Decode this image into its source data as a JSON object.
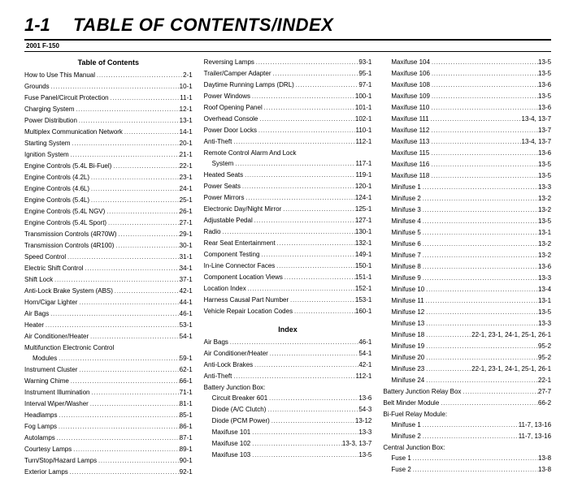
{
  "header": {
    "section_num": "1-1",
    "title": "TABLE OF CONTENTS/INDEX",
    "subhead": "2001 F-150"
  },
  "headings": {
    "toc": "Table of Contents",
    "index": "Index"
  },
  "col1": [
    {
      "label": "How to Use This Manual",
      "page": "2-1"
    },
    {
      "label": "Grounds",
      "page": "10-1"
    },
    {
      "label": "Fuse Panel/Circuit Protection",
      "page": "11-1"
    },
    {
      "label": "Charging System",
      "page": "12-1"
    },
    {
      "label": "Power Distribution",
      "page": "13-1"
    },
    {
      "label": "Multiplex Communication Network",
      "page": "14-1"
    },
    {
      "label": "Starting System",
      "page": "20-1"
    },
    {
      "label": "Ignition System",
      "page": "21-1"
    },
    {
      "label": "Engine Controls (5.4L Bi-Fuel)",
      "page": "22-1"
    },
    {
      "label": "Engine Controls (4.2L)",
      "page": "23-1"
    },
    {
      "label": "Engine Controls (4.6L)",
      "page": "24-1"
    },
    {
      "label": "Engine Controls (5.4L)",
      "page": "25-1"
    },
    {
      "label": "Engine Controls (5.4L NGV)",
      "page": "26-1"
    },
    {
      "label": "Engine Controls (5.4L Sport)",
      "page": "27-1"
    },
    {
      "label": "Transmission Controls (4R70W)",
      "page": "29-1"
    },
    {
      "label": "Transmission Controls (4R100)",
      "page": "30-1"
    },
    {
      "label": "Speed Control",
      "page": "31-1"
    },
    {
      "label": "Electric Shift Control",
      "page": "34-1"
    },
    {
      "label": "Shift Lock",
      "page": "37-1"
    },
    {
      "label": "Anti-Lock Brake System (ABS)",
      "page": "42-1"
    },
    {
      "label": "Horn/Cigar Lighter",
      "page": "44-1"
    },
    {
      "label": "Air Bags",
      "page": "46-1"
    },
    {
      "label": "Heater",
      "page": "53-1"
    },
    {
      "label": "Air Conditioner/Heater",
      "page": "54-1"
    },
    {
      "label": "Multifunction Electronic Control",
      "page": ""
    },
    {
      "label": "Modules",
      "page": "59-1",
      "indent": true
    },
    {
      "label": "Instrument Cluster",
      "page": "62-1"
    },
    {
      "label": "Warning Chime",
      "page": "66-1"
    },
    {
      "label": "Instrument Illumination",
      "page": "71-1"
    },
    {
      "label": "Interval Wiper/Washer",
      "page": "81-1"
    },
    {
      "label": "Headlamps",
      "page": "85-1"
    },
    {
      "label": "Fog Lamps",
      "page": "86-1"
    },
    {
      "label": "Autolamps",
      "page": "87-1"
    },
    {
      "label": "Courtesy Lamps",
      "page": "89-1"
    },
    {
      "label": "Turn/Stop/Hazard Lamps",
      "page": "90-1"
    },
    {
      "label": "Exterior Lamps",
      "page": "92-1"
    }
  ],
  "col2": [
    {
      "label": "Reversing Lamps",
      "page": "93-1"
    },
    {
      "label": "Trailer/Camper Adapter",
      "page": "95-1"
    },
    {
      "label": "Daytime Running Lamps (DRL)",
      "page": "97-1"
    },
    {
      "label": "Power Windows",
      "page": "100-1"
    },
    {
      "label": "Roof Opening Panel",
      "page": "101-1"
    },
    {
      "label": "Overhead Console",
      "page": "102-1"
    },
    {
      "label": "Power Door Locks",
      "page": "110-1"
    },
    {
      "label": "Anti-Theft",
      "page": "112-1"
    },
    {
      "label": "Remote Control Alarm And Lock",
      "page": ""
    },
    {
      "label": "System",
      "page": "117-1",
      "indent": true
    },
    {
      "label": "Heated Seats",
      "page": "119-1"
    },
    {
      "label": "Power Seats",
      "page": "120-1"
    },
    {
      "label": "Power Mirrors",
      "page": "124-1"
    },
    {
      "label": "Electronic Day/Night Mirror",
      "page": "125-1"
    },
    {
      "label": "Adjustable Pedal",
      "page": "127-1"
    },
    {
      "label": "Radio",
      "page": "130-1"
    },
    {
      "label": "Rear Seat Entertainment",
      "page": "132-1"
    },
    {
      "label": "Component Testing",
      "page": "149-1"
    },
    {
      "label": "In-Line Connector Faces",
      "page": "150-1"
    },
    {
      "label": "Component Location Views",
      "page": "151-1"
    },
    {
      "label": "Location Index",
      "page": "152-1"
    },
    {
      "label": "Harness Causal Part Number",
      "page": "153-1"
    },
    {
      "label": "Vehicle Repair Location Codes",
      "page": "160-1"
    }
  ],
  "col2_index": [
    {
      "label": "Air Bags",
      "page": "46-1"
    },
    {
      "label": "Air Conditioner/Heater",
      "page": "54-1"
    },
    {
      "label": "Anti-Lock Brakes",
      "page": "42-1"
    },
    {
      "label": "Anti-Theft",
      "page": "112-1"
    },
    {
      "label": "Battery Junction Box:",
      "page": ""
    },
    {
      "label": "Circuit Breaker 601",
      "page": "13-6",
      "indent": true
    },
    {
      "label": "Diode (A/C Clutch)",
      "page": "54-3",
      "indent": true
    },
    {
      "label": "Diode (PCM Power)",
      "page": "13-12",
      "indent": true
    },
    {
      "label": "Maxifuse 101",
      "page": "13-3",
      "indent": true
    },
    {
      "label": "Maxifuse 102",
      "page": "13-3, 13-7",
      "indent": true
    },
    {
      "label": "Maxifuse 103",
      "page": "13-5",
      "indent": true
    }
  ],
  "col3": [
    {
      "label": "Maxifuse 104",
      "page": "13-5",
      "indent": true
    },
    {
      "label": "Maxifuse 106",
      "page": "13-5",
      "indent": true
    },
    {
      "label": "Maxifuse 108",
      "page": "13-6",
      "indent": true
    },
    {
      "label": "Maxifuse 109",
      "page": "13-5",
      "indent": true
    },
    {
      "label": "Maxifuse 110",
      "page": "13-6",
      "indent": true
    },
    {
      "label": "Maxifuse 111",
      "page": "13-4, 13-7",
      "indent": true
    },
    {
      "label": "Maxifuse 112",
      "page": "13-7",
      "indent": true
    },
    {
      "label": "Maxifuse 113",
      "page": "13-4, 13-7",
      "indent": true
    },
    {
      "label": "Maxifuse 115",
      "page": "13-6",
      "indent": true
    },
    {
      "label": "Maxifuse 116",
      "page": "13-5",
      "indent": true
    },
    {
      "label": "Maxifuse 118",
      "page": "13-5",
      "indent": true
    },
    {
      "label": "Minifuse 1",
      "page": "13-3",
      "indent": true
    },
    {
      "label": "Minifuse 2",
      "page": "13-2",
      "indent": true
    },
    {
      "label": "Minifuse 3",
      "page": "13-2",
      "indent": true
    },
    {
      "label": "Minifuse 4",
      "page": "13-5",
      "indent": true
    },
    {
      "label": "Minifuse 5",
      "page": "13-1",
      "indent": true
    },
    {
      "label": "Minifuse 6",
      "page": "13-2",
      "indent": true
    },
    {
      "label": "Minifuse 7",
      "page": "13-2",
      "indent": true
    },
    {
      "label": "Minifuse 8",
      "page": "13-6",
      "indent": true
    },
    {
      "label": "Minifuse 9",
      "page": "13-3",
      "indent": true
    },
    {
      "label": "Minifuse 10",
      "page": "13-4",
      "indent": true
    },
    {
      "label": "Minifuse 11",
      "page": "13-1",
      "indent": true
    },
    {
      "label": "Minifuse 12",
      "page": "13-5",
      "indent": true
    },
    {
      "label": "Minifuse 13",
      "page": "13-3",
      "indent": true
    },
    {
      "label": "Minifuse 18",
      "page": "22-1, 23-1, 24-1, 25-1, 26-1",
      "indent": true
    },
    {
      "label": "Minifuse 19",
      "page": "95-2",
      "indent": true
    },
    {
      "label": "Minifuse 20",
      "page": "95-2",
      "indent": true
    },
    {
      "label": "Minifuse 23",
      "page": "22-1, 23-1, 24-1, 25-1, 26-1",
      "indent": true
    },
    {
      "label": "Minifuse 24",
      "page": "22-1",
      "indent": true
    },
    {
      "label": "Battery Junction Relay Box",
      "page": "27-7"
    },
    {
      "label": "Belt Minder Module",
      "page": "66-2"
    },
    {
      "label": "Bi-Fuel Relay Module:",
      "page": ""
    },
    {
      "label": "Minifuse 1",
      "page": "11-7, 13-16",
      "indent": true
    },
    {
      "label": "Minifuse 2",
      "page": "11-7, 13-16",
      "indent": true
    },
    {
      "label": "Central Junction Box:",
      "page": ""
    },
    {
      "label": "Fuse 1",
      "page": "13-8",
      "indent": true
    },
    {
      "label": "Fuse 2",
      "page": "13-8",
      "indent": true
    }
  ]
}
